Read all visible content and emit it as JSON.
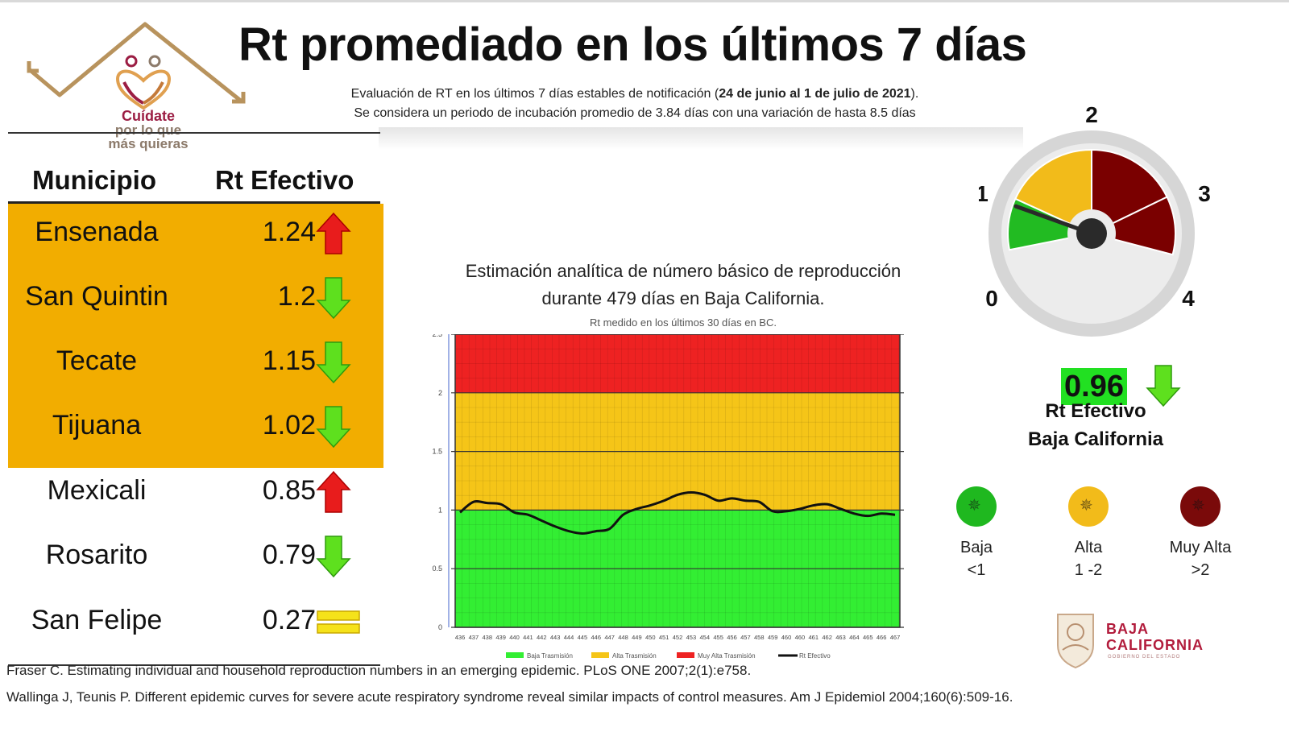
{
  "title": "Rt promediado en los últimos 7 días",
  "subtitle_line1_prefix": "Evaluación de RT en los últimos 7 días estables de notificación (",
  "subtitle_line1_bold": "24 de junio al 1 de julio de 2021",
  "subtitle_line1_suffix": ").",
  "subtitle_line2": "Se considera un periodo de incubación promedio de 3.84 días con una variación de hasta 8.5 días",
  "logo": {
    "line1": "Cuídate",
    "line2": "por lo que",
    "line3": "más quieras"
  },
  "table": {
    "header_municipio": "Municipio",
    "header_rt": "Rt Efectivo",
    "rows": [
      {
        "municipio": "Ensenada",
        "rt": "1.24",
        "trend": "up"
      },
      {
        "municipio": "San Quintin",
        "rt": "1.2",
        "trend": "down"
      },
      {
        "municipio": "Tecate",
        "rt": "1.15",
        "trend": "down"
      },
      {
        "municipio": "Tijuana",
        "rt": "1.02",
        "trend": "down"
      },
      {
        "municipio": "Mexicali",
        "rt": "0.85",
        "trend": "up"
      },
      {
        "municipio": "Rosarito",
        "rt": "0.79",
        "trend": "down"
      },
      {
        "municipio": "San Felipe",
        "rt": "0.27",
        "trend": "equal"
      }
    ]
  },
  "chart_title_line1": "Estimación analítica de número básico de reproducción",
  "chart_title_line2": "durante 479 días en Baja California.",
  "chart_subtitle": "Rt medido en los últimos 30 días en BC.",
  "chart_data": {
    "type": "line",
    "title": "Estimación analítica de número básico de reproducción durante 479 días en Baja California.",
    "xlabel": "",
    "ylabel": "",
    "ylim": [
      0,
      2.5
    ],
    "yticks": [
      "0",
      "0.5",
      "1",
      "1.5",
      "2",
      "2.5"
    ],
    "ytick_values": [
      0,
      0.5,
      1,
      1.5,
      2,
      2.5
    ],
    "x": [
      436,
      437,
      438,
      439,
      440,
      441,
      442,
      443,
      444,
      445,
      446,
      447,
      448,
      449,
      450,
      451,
      452,
      453,
      454,
      455,
      456,
      457,
      458,
      459,
      460,
      460,
      461,
      462,
      463,
      464,
      465,
      466,
      467
    ],
    "xtick_labels": [
      "436",
      "437",
      "438",
      "439",
      "440",
      "441",
      "442",
      "443",
      "444",
      "445",
      "446",
      "447",
      "448",
      "449",
      "450",
      "451",
      "452",
      "453",
      "454",
      "455",
      "456",
      "457",
      "458",
      "459",
      "460",
      "460",
      "461",
      "462",
      "463",
      "464",
      "465",
      "466",
      "467"
    ],
    "bands": [
      {
        "name": "Baja Trasmisión",
        "from": 0,
        "to": 1,
        "color": "#33ee33"
      },
      {
        "name": "Alta Trasmisión",
        "from": 1,
        "to": 2,
        "color": "#f5c518"
      },
      {
        "name": "Muy Alta Trasmisión",
        "from": 2,
        "to": 2.5,
        "color": "#ee2222"
      }
    ],
    "series": [
      {
        "name": "Rt Efectivo",
        "color": "#111111",
        "values": [
          0.98,
          1.07,
          1.06,
          1.05,
          0.98,
          0.96,
          0.91,
          0.86,
          0.82,
          0.8,
          0.82,
          0.84,
          0.96,
          1.01,
          1.04,
          1.08,
          1.13,
          1.15,
          1.13,
          1.08,
          1.1,
          1.08,
          1.07,
          0.99,
          0.99,
          1.01,
          1.04,
          1.05,
          1.01,
          0.97,
          0.95,
          0.97,
          0.96
        ]
      }
    ],
    "legend": [
      "Baja Trasmisión",
      "Alta Trasmisión",
      "Muy Alta Trasmisión",
      "Rt Efectivo"
    ],
    "legend_position": "bottom"
  },
  "gauge": {
    "labels": [
      "0",
      "1",
      "2",
      "3",
      "4"
    ],
    "value": 0.96,
    "colors": {
      "green": "#22bb22",
      "yellow": "#f2bb1a",
      "red": "#7a0000",
      "ring": "#d6d6d6",
      "inner": "#ececec"
    }
  },
  "bc": {
    "value": "0.96",
    "trend": "down",
    "label1": "Rt Efectivo",
    "label2": "Baja California"
  },
  "legend": [
    {
      "name": "Baja",
      "range": "<1",
      "color": "#1fb81f"
    },
    {
      "name": "Alta",
      "range": "1 -2",
      "color": "#f2bb1a"
    },
    {
      "name": "Muy Alta",
      "range": ">2",
      "color": "#7a0a0a"
    }
  ],
  "bc_logo": {
    "line1": "BAJA",
    "line2": "CALIFORNIA",
    "line3": "GOBIERNO DEL ESTADO"
  },
  "references": [
    "Fraser C. Estimating individual and household reproduction numbers in an emerging epidemic. PLoS ONE 2007;2(1):e758.",
    "Wallinga J, Teunis P. Different epidemic curves for severe acute respiratory syndrome reveal similar impacts of control measures. Am J Epidemiol 2004;160(6):509-16."
  ]
}
